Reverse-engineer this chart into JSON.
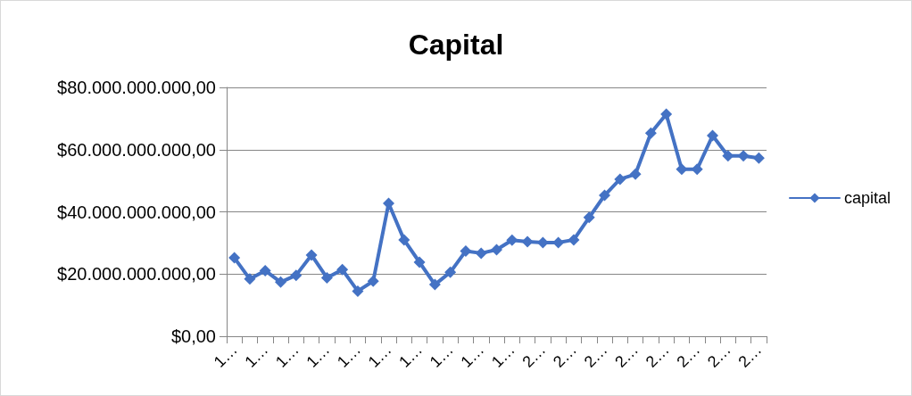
{
  "chart_data": {
    "type": "line",
    "title": "Capital",
    "categories": [
      "1…",
      null,
      "1…",
      null,
      "1…",
      null,
      "1…",
      null,
      "1…",
      null,
      "1…",
      null,
      "1…",
      null,
      "1…",
      null,
      "1…",
      null,
      "1…",
      null,
      "2…",
      null,
      "2…",
      null,
      "2…",
      null,
      "2…",
      null,
      "2…",
      null,
      "2…",
      null,
      "2…",
      null,
      "2…"
    ],
    "series": [
      {
        "name": "capital",
        "color": "#4472c4",
        "values": [
          25200000000,
          18400000000,
          21100000000,
          17400000000,
          19600000000,
          26100000000,
          18800000000,
          21400000000,
          14500000000,
          17700000000,
          42700000000,
          31000000000,
          23800000000,
          16600000000,
          20600000000,
          27400000000,
          26700000000,
          27800000000,
          30900000000,
          30400000000,
          30100000000,
          30100000000,
          31000000000,
          38200000000,
          45300000000,
          50500000000,
          52100000000,
          65300000000,
          71400000000,
          53700000000,
          53700000000,
          64500000000,
          58000000000,
          58000000000,
          57300000000
        ]
      }
    ],
    "ylim": [
      0,
      80000000000
    ],
    "yticks": [
      {
        "value": 0,
        "label": "$0,00"
      },
      {
        "value": 20000000000,
        "label": "$20.000.000.000,00"
      },
      {
        "value": 40000000000,
        "label": "$40.000.000.000,00"
      },
      {
        "value": 60000000000,
        "label": "$60.000.000.000,00"
      },
      {
        "value": 80000000000,
        "label": "$80.000.000.000,00"
      }
    ],
    "grid": "y",
    "legend": "right",
    "marker": "diamond",
    "line_style": "solid"
  }
}
